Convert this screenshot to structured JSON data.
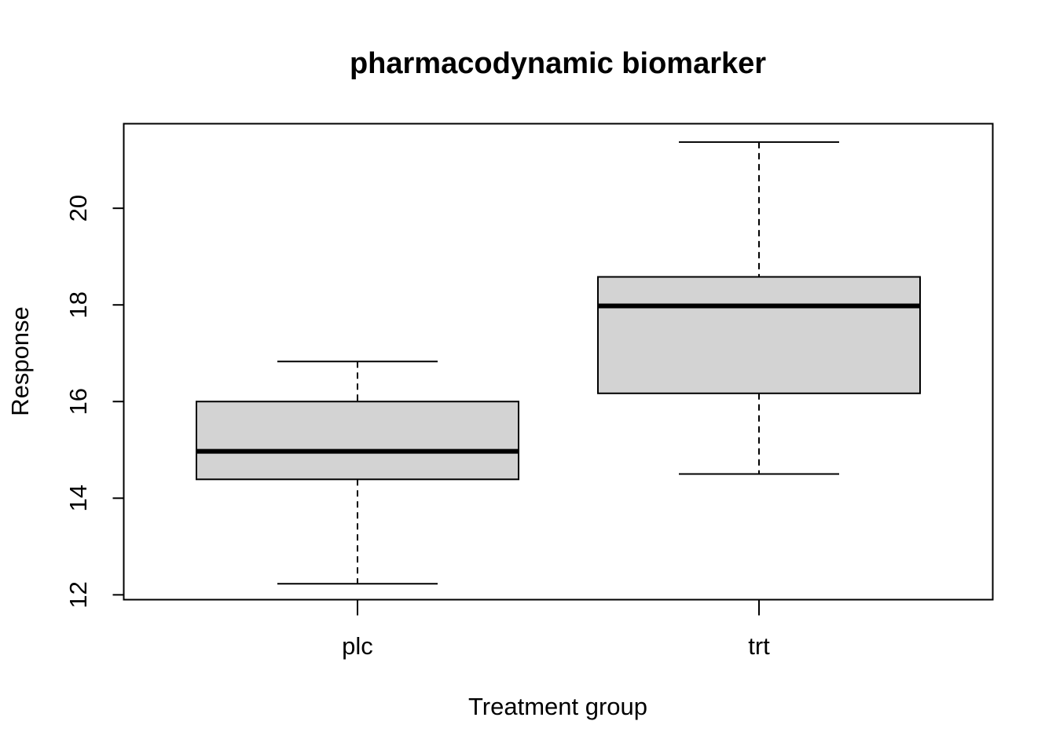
{
  "chart_data": {
    "type": "boxplot",
    "title": "pharmacodynamic biomarker",
    "xlabel": "Treatment group",
    "ylabel": "Response",
    "categories": [
      "plc",
      "trt"
    ],
    "ylim": [
      11.9,
      21.75
    ],
    "yticks": [
      12,
      14,
      16,
      18,
      20
    ],
    "ytick_labels": [
      "12",
      "14",
      "16",
      "18",
      "20"
    ],
    "grid": false,
    "boxes": [
      {
        "category": "plc",
        "whisker_low": 12.23,
        "q1": 14.39,
        "median": 14.97,
        "q3": 16.0,
        "whisker_high": 16.83
      },
      {
        "category": "trt",
        "whisker_low": 14.5,
        "q1": 16.17,
        "median": 17.98,
        "q3": 18.58,
        "whisker_high": 21.37
      }
    ],
    "box_fill": "#d3d3d3",
    "line_color": "#000000"
  }
}
